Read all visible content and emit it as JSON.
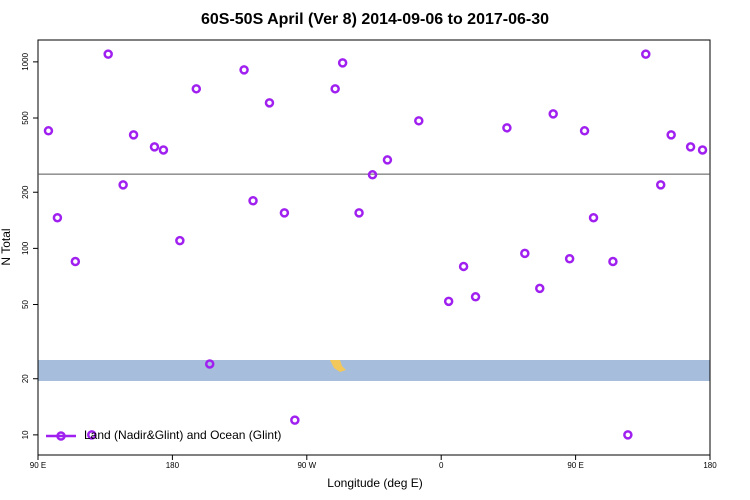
{
  "chart_data": {
    "type": "scatter",
    "title": "60S-50S April (Ver 8)   2014-09-06 to 2017-06-30",
    "x_label": "Longitude (deg E)",
    "y_label": "N Total",
    "log_y": true,
    "xlim": [
      90,
      540
    ],
    "ylim": [
      7.8,
      1310
    ],
    "xticks": [
      {
        "value": 90,
        "label": "90 E"
      },
      180,
      {
        "value": 270,
        "label": "90 W"
      },
      {
        "value": 360,
        "label": "0"
      },
      {
        "value": 450,
        "label": "90 E"
      },
      {
        "value": 540,
        "label": "180"
      }
    ],
    "yticks": [
      10,
      20,
      50,
      100,
      200,
      500,
      1000
    ],
    "hline": 250,
    "legend": "bottom-left",
    "series": [
      {
        "name": "Land (Nadir&Glint) and Ocean (Glint)",
        "color": "#a020f0",
        "x": [
          97,
          103,
          115,
          126,
          137,
          147,
          154,
          168,
          174,
          185,
          196,
          205,
          228,
          234,
          245,
          255,
          262,
          289,
          294,
          305,
          314,
          324,
          345,
          365,
          375,
          383,
          404,
          416,
          426,
          435,
          446,
          456,
          462,
          475,
          485,
          497,
          507,
          514,
          527,
          535
        ],
        "values": [
          427,
          146,
          85,
          10,
          1100,
          219,
          406,
          350,
          337,
          110,
          717,
          24,
          906,
          180,
          603,
          155,
          12,
          717,
          988,
          155,
          248,
          298,
          483,
          52,
          80,
          55,
          443,
          94,
          61,
          526,
          88,
          427,
          146,
          85,
          10,
          1100,
          219,
          406,
          350,
          337
        ]
      }
    ]
  }
}
